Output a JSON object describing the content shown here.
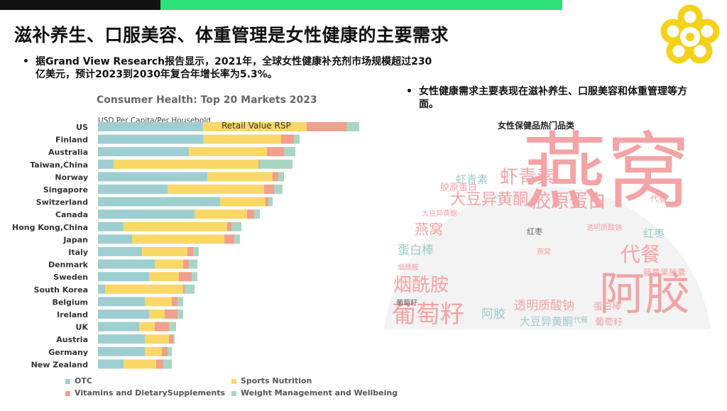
{
  "slide": {
    "title": "滋补养生、口服美容、体重管理是女性健康的主要需求",
    "bullet1": "据Grand View Research报告显示，2021年，全球女性健康补充剂市场规模超过230亿美元，预计2023到2030年复合年增长率为5.3%。",
    "bullet2": "女性健康需求主要表现在滋补养生、口服美容和体重管理等方面。",
    "bullet_marker": "•"
  },
  "chart_data": {
    "type": "bar",
    "orientation": "horizontal",
    "stacked": true,
    "title": "Consumer Health: Top 20 Markets 2023",
    "subtitle": "USD Per Capita/Per Household",
    "annotation": "Retail Value RSP",
    "categories": [
      "US",
      "Finland",
      "Australia",
      "Taiwan,China",
      "Norway",
      "Singapore",
      "Switzerland",
      "Canada",
      "Hong Kong,China",
      "Japan",
      "Italy",
      "Denmark",
      "Sweden",
      "South Korea",
      "Belgium",
      "Ireland",
      "UK",
      "Austria",
      "Germany",
      "New Zealand"
    ],
    "series": [
      {
        "name": "OTC",
        "color": "#9ecfd0",
        "values": [
          148,
          148,
          128,
          22,
          154,
          98,
          172,
          136,
          36,
          48,
          62,
          80,
          72,
          10,
          66,
          72,
          58,
          66,
          66,
          36
        ]
      },
      {
        "name": "Sports Nutrition",
        "color": "#fad867",
        "values": [
          146,
          110,
          110,
          204,
          92,
          136,
          64,
          74,
          146,
          130,
          64,
          40,
          42,
          110,
          38,
          22,
          22,
          34,
          24,
          46
        ]
      },
      {
        "name": "Vitamins and DietarySupplements",
        "color": "#f0a08c",
        "values": [
          56,
          18,
          24,
          2,
          8,
          14,
          4,
          10,
          6,
          14,
          8,
          8,
          18,
          2,
          8,
          18,
          20,
          6,
          8,
          10
        ]
      },
      {
        "name": "Weight Management and Wellbeing",
        "color": "#a9d6c3",
        "values": [
          18,
          8,
          16,
          46,
          8,
          12,
          6,
          8,
          14,
          8,
          8,
          12,
          8,
          14,
          8,
          8,
          10,
          2,
          6,
          12
        ]
      }
    ],
    "xlim": [
      0,
      370
    ],
    "grid": false,
    "legend_position": "bottom"
  },
  "wordcloud": {
    "title": "女性保健品热门品类",
    "words": [
      {
        "text": "燕窝",
        "color": "#f4a3a6"
      },
      {
        "text": "阿胶",
        "color": "#f4a3a6"
      },
      {
        "text": "代餐",
        "color": "#f4a3a6"
      },
      {
        "text": "葡萄籽",
        "color": "#f4a3a6"
      },
      {
        "text": "烟酰胺",
        "color": "#f4a3a6"
      },
      {
        "text": "胶原蛋白",
        "color": "#f4a3a6"
      },
      {
        "text": "虾青素",
        "color": "#f4a3a6"
      },
      {
        "text": "大豆异黄酮",
        "color": "#f4a3a6"
      },
      {
        "text": "燕窝",
        "color": "#f4a3a6"
      },
      {
        "text": "蛋白棒",
        "color": "#9fc9c9"
      },
      {
        "text": "红枣",
        "color": "#9fc9c9"
      },
      {
        "text": "透明质酸钠",
        "color": "#f4a3a6"
      },
      {
        "text": "藤黄果胶囊",
        "color": "#f4a3a6"
      },
      {
        "text": "虾青素",
        "color": "#9fc9c9"
      },
      {
        "text": "烟酰胺",
        "color": "#f4a3a6"
      },
      {
        "text": "阿胶",
        "color": "#9fc9c9"
      },
      {
        "text": "大豆异黄酮",
        "color": "#9fc9c9"
      },
      {
        "text": "蛋白棒",
        "color": "#f4a3a6"
      },
      {
        "text": "葡萄籽",
        "color": "#f4a3a6"
      },
      {
        "text": "胶原蛋白",
        "color": "#f4a3a6"
      },
      {
        "text": "红枣",
        "color": "#666"
      },
      {
        "text": "燕窝",
        "color": "#f4a3a6"
      },
      {
        "text": "葡萄籽",
        "color": "#666"
      },
      {
        "text": "代餐",
        "color": "#f4a3a6"
      },
      {
        "text": "大豆异黄酮",
        "color": "#f4a3a6"
      },
      {
        "text": "透明质酸钠",
        "color": "#f4a3a6"
      },
      {
        "text": "代餐",
        "color": "#9fc9c9"
      }
    ]
  },
  "colors": {
    "top_bar_black": "#111111",
    "top_bar_green": "#2ee07a",
    "logo": "#f5d21a"
  }
}
